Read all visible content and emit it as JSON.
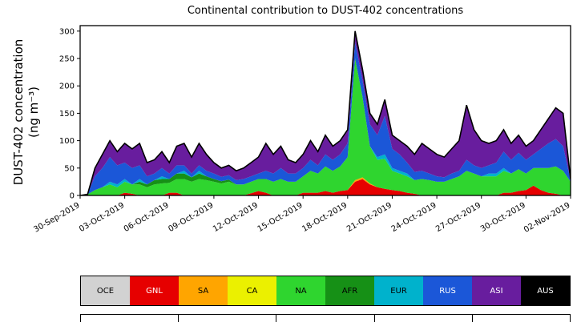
{
  "title": "Continental contribution to DUST-402 concentrations",
  "y_axis": {
    "label_line1": "DUST-402 concentration",
    "label_line2": "(ng m⁻³)",
    "ticks": [
      0,
      50,
      100,
      150,
      200,
      250,
      300
    ]
  },
  "x_axis": {
    "tick_days": [
      0,
      3,
      6,
      9,
      12,
      15,
      18,
      21,
      24,
      27,
      30,
      33
    ],
    "tick_labels": [
      "30-Sep-2019",
      "03-Oct-2019",
      "06-Oct-2019",
      "09-Oct-2019",
      "12-Oct-2019",
      "15-Oct-2019",
      "18-Oct-2019",
      "21-Oct-2019",
      "24-Oct-2019",
      "27-Oct-2019",
      "30-Oct-2019",
      "02-Nov-2019"
    ]
  },
  "legend": {
    "items": [
      {
        "label": "OCE",
        "color": "#d2d2d2",
        "text_color": "#000000"
      },
      {
        "label": "GNL",
        "color": "#e60000",
        "text_color": "#ffffff"
      },
      {
        "label": "SA",
        "color": "#ffa500",
        "text_color": "#000000"
      },
      {
        "label": "CA",
        "color": "#ebf000",
        "text_color": "#000000"
      },
      {
        "label": "NA",
        "color": "#2fd52f",
        "text_color": "#000000"
      },
      {
        "label": "AFR",
        "color": "#169016",
        "text_color": "#000000"
      },
      {
        "label": "EUR",
        "color": "#00b2cc",
        "text_color": "#000000"
      },
      {
        "label": "RUS",
        "color": "#1b57d8",
        "text_color": "#ffffff"
      },
      {
        "label": "ASI",
        "color": "#681d9e",
        "text_color": "#ffffff"
      },
      {
        "label": "AUS",
        "color": "#000000",
        "text_color": "#ffffff"
      }
    ]
  },
  "chart_data": {
    "type": "area",
    "stacked": true,
    "title": "Continental contribution to DUST-402 concentrations",
    "ylabel": "DUST-402 concentration (ng m⁻³)",
    "ylim": [
      0,
      310
    ],
    "x_unit": "days since 30-Sep-2019",
    "x_start": 0,
    "x_step": 0.5,
    "x_count": 67,
    "outline_color": "#000000",
    "series": [
      {
        "name": "OCE",
        "color": "#d2d2d2",
        "values": []
      },
      {
        "name": "GNL",
        "color": "#e60000",
        "values": [
          0,
          0,
          0,
          0,
          0,
          0,
          5,
          3,
          0,
          0,
          0,
          0,
          5,
          5,
          0,
          0,
          0,
          0,
          0,
          0,
          0,
          0,
          0,
          4,
          8,
          5,
          0,
          0,
          0,
          0,
          5,
          5,
          5,
          8,
          5,
          8,
          10,
          25,
          30,
          20,
          15,
          12,
          10,
          8,
          5,
          3,
          0,
          0,
          0,
          0,
          0,
          0,
          0,
          0,
          0,
          0,
          0,
          5,
          5,
          8,
          10,
          18,
          10,
          5,
          3,
          0,
          0
        ]
      },
      {
        "name": "SA",
        "color": "#ffa500",
        "values": [
          0,
          0,
          0,
          0,
          0,
          0,
          0,
          0,
          0,
          0,
          0,
          0,
          0,
          0,
          0,
          0,
          0,
          0,
          0,
          0,
          0,
          0,
          0,
          0,
          0,
          0,
          0,
          0,
          0,
          0,
          0,
          0,
          0,
          0,
          0,
          0,
          0,
          3,
          3,
          2,
          0,
          0,
          0,
          0,
          0,
          0,
          0,
          0,
          0,
          0,
          0,
          0,
          0,
          0,
          0,
          0,
          0,
          0,
          0,
          0,
          0,
          0,
          0,
          0,
          0,
          0,
          0
        ]
      },
      {
        "name": "CA",
        "color": "#ebf000",
        "values": []
      },
      {
        "name": "NA",
        "color": "#2fd52f",
        "values": [
          0,
          2,
          10,
          15,
          20,
          15,
          20,
          17,
          20,
          15,
          20,
          22,
          18,
          25,
          30,
          25,
          30,
          28,
          25,
          22,
          25,
          20,
          20,
          21,
          22,
          25,
          25,
          30,
          25,
          25,
          30,
          40,
          35,
          45,
          40,
          45,
          60,
          222,
          147,
          68,
          50,
          55,
          35,
          32,
          30,
          25,
          30,
          28,
          25,
          25,
          30,
          35,
          45,
          40,
          35,
          35,
          35,
          40,
          35,
          40,
          30,
          32,
          40,
          45,
          50,
          45,
          25
        ]
      },
      {
        "name": "AFR",
        "color": "#169016",
        "values": [
          0,
          0,
          0,
          0,
          0,
          0,
          0,
          0,
          5,
          5,
          8,
          8,
          7,
          10,
          10,
          8,
          10,
          7,
          5,
          4,
          4,
          0,
          0,
          0,
          0,
          0,
          0,
          0,
          0,
          0,
          0,
          0,
          0,
          0,
          0,
          0,
          0,
          0,
          0,
          0,
          0,
          0,
          0,
          0,
          0,
          0,
          0,
          0,
          0,
          0,
          0,
          0,
          0,
          0,
          0,
          0,
          0,
          0,
          0,
          0,
          0,
          0,
          0,
          0,
          0,
          0,
          0
        ]
      },
      {
        "name": "EUR",
        "color": "#00b2cc",
        "values": [
          0,
          0,
          0,
          0,
          5,
          5,
          5,
          0,
          5,
          0,
          0,
          5,
          0,
          0,
          5,
          0,
          5,
          0,
          0,
          0,
          0,
          0,
          0,
          0,
          0,
          0,
          0,
          0,
          0,
          0,
          0,
          0,
          0,
          0,
          0,
          0,
          0,
          0,
          0,
          0,
          5,
          8,
          5,
          5,
          5,
          0,
          0,
          0,
          0,
          0,
          0,
          0,
          0,
          0,
          0,
          5,
          5,
          5,
          0,
          0,
          0,
          0,
          0,
          0,
          0,
          0,
          0
        ]
      },
      {
        "name": "RUS",
        "color": "#1b57d8",
        "values": [
          0,
          0,
          25,
          35,
          45,
          35,
          30,
          30,
          25,
          15,
          12,
          15,
          10,
          15,
          10,
          7,
          10,
          10,
          10,
          8,
          8,
          8,
          10,
          10,
          10,
          15,
          15,
          20,
          15,
          15,
          15,
          20,
          15,
          22,
          20,
          22,
          25,
          30,
          30,
          40,
          40,
          70,
          35,
          30,
          20,
          15,
          15,
          12,
          10,
          8,
          10,
          10,
          20,
          15,
          15,
          15,
          20,
          30,
          25,
          30,
          25,
          25,
          35,
          45,
          50,
          45,
          3
        ]
      },
      {
        "name": "ASI",
        "color": "#681d9e",
        "values": [
          0,
          0,
          15,
          25,
          30,
          25,
          35,
          35,
          40,
          25,
          25,
          30,
          20,
          35,
          40,
          30,
          40,
          30,
          20,
          16,
          18,
          17,
          20,
          25,
          30,
          50,
          35,
          40,
          25,
          20,
          25,
          35,
          25,
          35,
          25,
          25,
          25,
          20,
          20,
          20,
          20,
          30,
          25,
          25,
          30,
          32,
          50,
          45,
          40,
          37,
          45,
          55,
          100,
          65,
          50,
          40,
          40,
          40,
          30,
          32,
          25,
          25,
          35,
          45,
          57,
          60,
          2
        ]
      },
      {
        "name": "AUS",
        "color": "#000000",
        "values": []
      }
    ]
  }
}
